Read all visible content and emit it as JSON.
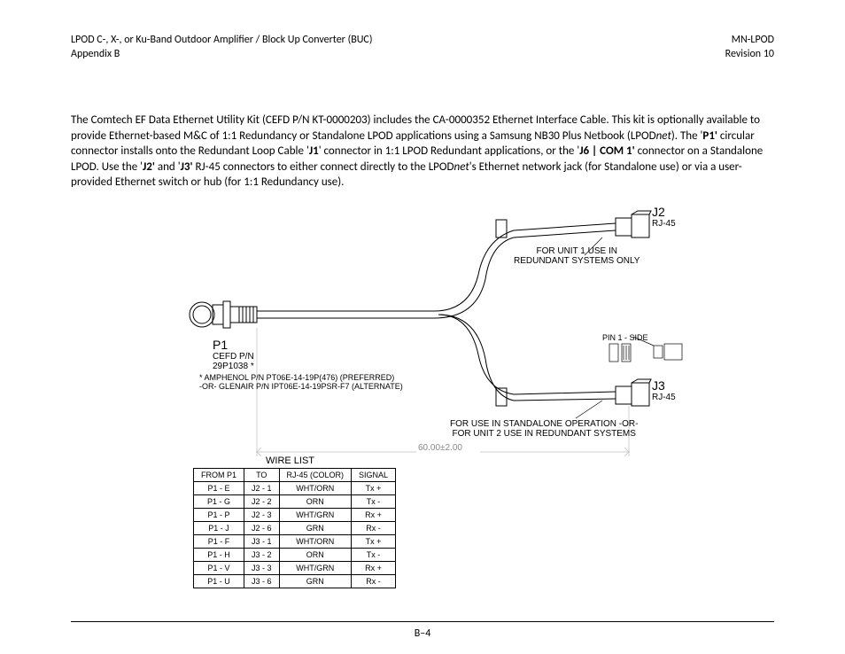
{
  "header": {
    "left_line1": "LPOD C-, X-, or Ku-Band Outdoor Amplifier / Block Up Converter (BUC)",
    "left_line2": "Appendix B",
    "right_line1": "MN-LPOD",
    "right_line2": "Revision 10"
  },
  "paragraph": {
    "t1": "The Comtech EF Data Ethernet Utility Kit (CEFD P/N KT-0000203) includes the CA-0000352 Ethernet Interface Cable. This kit is optionally available to provide Ethernet-based M&C of 1:1 Redundancy or Standalone LPOD applications using a Samsung NB30 Plus Netbook (LPOD",
    "t2": "net",
    "t3": "). The '",
    "t4": "P1'",
    "t5": " circular connector installs onto the Redundant Loop Cable '",
    "t6": "J1",
    "t7": "' connector in 1:1 LPOD Redundant applications, or the '",
    "t8": "J6 | COM 1'",
    "t9": " connector on a Standalone LPOD. Use the '",
    "t10": "J2'",
    "t11": " and '",
    "t12": "J3'",
    "t13": " RJ-45 connectors to either connect directly to the LPOD",
    "t14": "net",
    "t15": "'s Ethernet network jack (for Standalone use) or via a user-provided Ethernet switch or hub (for 1:1 Redundancy use)."
  },
  "diagram": {
    "p1_label": "P1",
    "p1_cefd": "CEFD P/N",
    "p1_pn": "29P1038 *",
    "amphenol_l1": "* AMPHENOL P/N PT06E-14-19P(476) (PREFERRED)",
    "amphenol_l2": "  -OR- GLENAIR P/N IPT06E-14-19PSR-F7 (ALTERNATE)",
    "j2_big": "J2",
    "j2_small": "RJ-45",
    "j3_big": "J3",
    "j3_small": "RJ-45",
    "unit1_l1": "FOR UNIT 1 USE IN",
    "unit1_l2": "REDUNDANT SYSTEMS ONLY",
    "unit2_l1": "FOR USE IN STANDALONE OPERATION -OR-",
    "unit2_l2": "FOR UNIT 2 USE IN REDUNDANT SYSTEMS",
    "pin1": "PIN 1 - SIDE",
    "dim": "60.00±2.00",
    "stroke_color": "#000000",
    "dim_color": "#888888",
    "dim_line_color": "#bbbbbb"
  },
  "wire_list": {
    "title": "WIRE LIST",
    "headers": [
      "FROM P1",
      "TO",
      "RJ-45 (COLOR)",
      "SIGNAL"
    ],
    "rows": [
      [
        "P1 - E",
        "J2 - 1",
        "WHT/ORN",
        "Tx +"
      ],
      [
        "P1 - G",
        "J2 - 2",
        "ORN",
        "Tx -"
      ],
      [
        "P1 - P",
        "J2 - 3",
        "WHT/GRN",
        "Rx +"
      ],
      [
        "P1 - J",
        "J2 - 6",
        "GRN",
        "Rx -"
      ],
      [
        "P1 - F",
        "J3 - 1",
        "WHT/ORN",
        "Tx +"
      ],
      [
        "P1 - H",
        "J3 - 2",
        "ORN",
        "Tx -"
      ],
      [
        "P1 - V",
        "J3 - 3",
        "WHT/GRN",
        "Rx +"
      ],
      [
        "P1 - U",
        "J3 - 6",
        "GRN",
        "Rx -"
      ]
    ]
  },
  "footer": {
    "page": "B–4"
  }
}
